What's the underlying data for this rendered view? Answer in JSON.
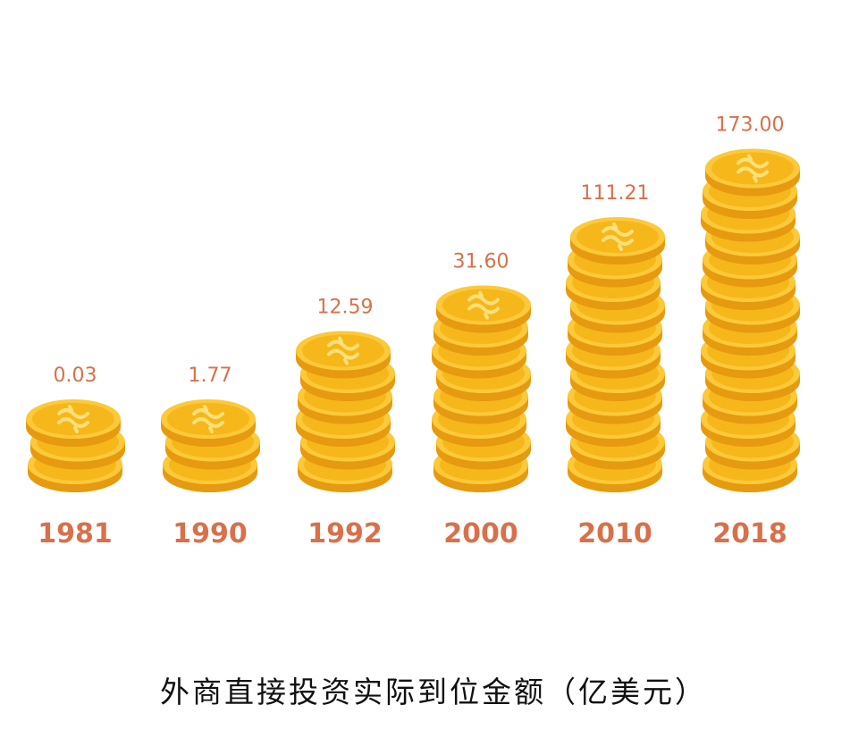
{
  "chart_data": {
    "type": "bar",
    "title": "外商直接投资实际到位金额（亿美元）",
    "categories": [
      "1981",
      "1990",
      "1992",
      "2000",
      "2010",
      "2018"
    ],
    "values": [
      0.03,
      1.77,
      12.59,
      31.6,
      111.21,
      173.0
    ],
    "value_labels": [
      "0.03",
      "1.77",
      "12.59",
      "31.60",
      "111.21",
      "173.00"
    ],
    "coin_counts": [
      3,
      3,
      6,
      8,
      11,
      14
    ],
    "legend": "none",
    "grid": false
  },
  "colors": {
    "label": "#d9704a",
    "coin_face": "#f6b71b",
    "coin_edge": "#e59a10",
    "coin_rim": "#fbc93a",
    "coin_symbol": "#fde07a",
    "caption": "#111111"
  }
}
